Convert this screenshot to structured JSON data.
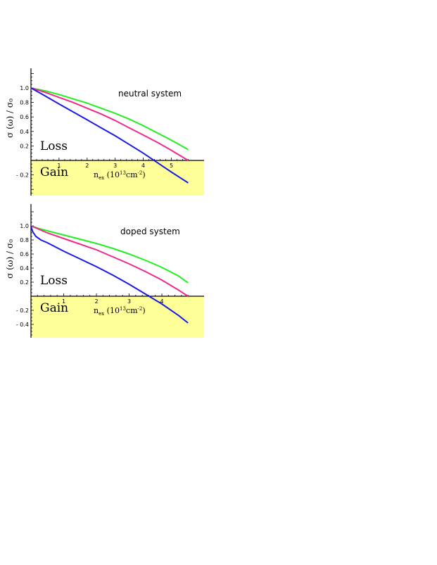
{
  "colors": {
    "gain_region": "#ffff99",
    "green": "#22ee22",
    "magenta": "#ee2a8a",
    "blue": "#1a1ae6",
    "axis": "#000000"
  },
  "chart_data": [
    {
      "type": "line",
      "annotation": "neutral system",
      "region_labels": {
        "loss": "Loss",
        "gain": "Gain"
      },
      "ylabel": "σ (ω) / σ₀",
      "xlabel_main": "n",
      "xlabel_sub": "ex",
      "xlabel_rest": " (10",
      "xlabel_sup": "13",
      "xlabel_unit": "cm",
      "xlabel_sup2": "-2",
      "xlabel_close": ")",
      "xlim": [
        0,
        5.8
      ],
      "ylim": [
        -0.35,
        1.25
      ],
      "xticks": [
        1,
        2,
        3,
        4,
        5
      ],
      "xtick_labels": [
        "1",
        "2",
        "3",
        "4",
        "5"
      ],
      "yticks": [
        1.0,
        0.8,
        0.6,
        0.4,
        0.2,
        -0.2
      ],
      "ytick_labels": [
        "1.0",
        "0.8",
        "0.6",
        "0.4",
        "0.2",
        "- 0.2"
      ],
      "series": [
        {
          "color": "green",
          "x": [
            0,
            0.5,
            1,
            1.5,
            2,
            2.5,
            3,
            3.5,
            4,
            4.5,
            5,
            5.6
          ],
          "y": [
            1.0,
            0.96,
            0.91,
            0.85,
            0.79,
            0.72,
            0.65,
            0.57,
            0.48,
            0.38,
            0.28,
            0.15
          ]
        },
        {
          "color": "magenta",
          "x": [
            0,
            0.5,
            1,
            1.5,
            2,
            2.5,
            3,
            3.5,
            4,
            4.5,
            5,
            5.6
          ],
          "y": [
            1.0,
            0.94,
            0.87,
            0.8,
            0.72,
            0.64,
            0.55,
            0.45,
            0.35,
            0.25,
            0.14,
            0.0
          ]
        },
        {
          "color": "blue",
          "x": [
            0,
            0.5,
            1,
            1.5,
            2,
            2.5,
            3,
            3.5,
            4,
            4.5,
            5,
            5.6
          ],
          "y": [
            1.0,
            0.89,
            0.78,
            0.67,
            0.56,
            0.45,
            0.34,
            0.22,
            0.1,
            -0.03,
            -0.16,
            -0.31
          ]
        }
      ]
    },
    {
      "type": "line",
      "annotation": "doped system",
      "region_labels": {
        "loss": "Loss",
        "gain": "Gain"
      },
      "ylabel": "σ (ω) / σ₀",
      "xlabel_main": "n",
      "xlabel_sub": "ex",
      "xlabel_rest": " (10",
      "xlabel_sup": "13",
      "xlabel_unit": "cm",
      "xlabel_sup2": "-2",
      "xlabel_close": ")",
      "xlim": [
        0,
        5.0
      ],
      "ylim": [
        -0.5,
        1.25
      ],
      "xticks": [
        1,
        2,
        3,
        4
      ],
      "xtick_labels": [
        "1",
        "2",
        "3",
        "4"
      ],
      "yticks": [
        1.0,
        0.8,
        0.6,
        0.4,
        0.2,
        -0.2,
        -0.4
      ],
      "ytick_labels": [
        "1.0",
        "0.8",
        "0.6",
        "0.4",
        "0.2",
        "- 0.2",
        "- 0.4"
      ],
      "series": [
        {
          "color": "green",
          "x": [
            0,
            0.25,
            0.5,
            1,
            1.5,
            2,
            2.5,
            3,
            3.5,
            4,
            4.5,
            4.8
          ],
          "y": [
            1.0,
            0.96,
            0.93,
            0.87,
            0.81,
            0.75,
            0.68,
            0.6,
            0.51,
            0.41,
            0.29,
            0.19
          ]
        },
        {
          "color": "magenta",
          "x": [
            0,
            0.25,
            0.5,
            1,
            1.5,
            2,
            2.5,
            3,
            3.5,
            4,
            4.5,
            4.8
          ],
          "y": [
            1.0,
            0.95,
            0.9,
            0.82,
            0.74,
            0.66,
            0.56,
            0.46,
            0.35,
            0.23,
            0.09,
            0.0
          ]
        },
        {
          "color": "blue",
          "x": [
            0,
            0.05,
            0.15,
            0.3,
            0.5,
            1,
            1.5,
            2,
            2.5,
            3,
            3.5,
            4,
            4.5,
            4.8
          ],
          "y": [
            1.0,
            0.92,
            0.85,
            0.8,
            0.76,
            0.64,
            0.53,
            0.42,
            0.3,
            0.17,
            0.03,
            -0.11,
            -0.27,
            -0.38
          ]
        }
      ]
    }
  ]
}
